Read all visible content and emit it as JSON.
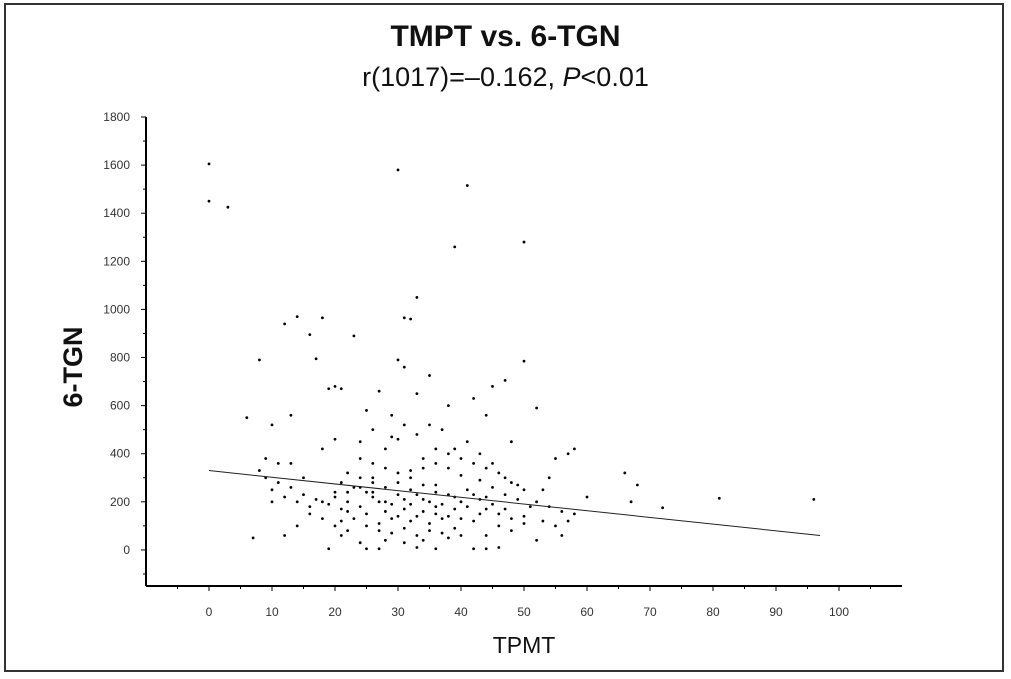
{
  "chart_data": {
    "type": "scatter",
    "title": "TMPT vs. 6-TGN",
    "subtitle_prefix": "r(1017)=–0.162, ",
    "subtitle_p": "P",
    "subtitle_suffix": "<0.01",
    "xlabel": "TPMT",
    "ylabel": "6-TGN",
    "xlim": [
      -10,
      110
    ],
    "ylim": [
      -150,
      1800
    ],
    "xticks": [
      0,
      10,
      20,
      30,
      40,
      50,
      60,
      70,
      80,
      90,
      100
    ],
    "yticks": [
      0,
      200,
      400,
      600,
      800,
      1000,
      1200,
      1400,
      1600,
      1800
    ],
    "grid": false,
    "trend_line": {
      "x": [
        0,
        97
      ],
      "y": [
        330,
        60
      ]
    },
    "points": [
      [
        0,
        1605
      ],
      [
        0,
        1450
      ],
      [
        3,
        1425
      ],
      [
        30,
        1580
      ],
      [
        41,
        1515
      ],
      [
        39,
        1260
      ],
      [
        50,
        1280
      ],
      [
        33,
        1050
      ],
      [
        31,
        965
      ],
      [
        32,
        960
      ],
      [
        12,
        940
      ],
      [
        14,
        970
      ],
      [
        18,
        965
      ],
      [
        16,
        895
      ],
      [
        23,
        890
      ],
      [
        35,
        725
      ],
      [
        8,
        790
      ],
      [
        17,
        795
      ],
      [
        30,
        790
      ],
      [
        31,
        760
      ],
      [
        50,
        785
      ],
      [
        47,
        705
      ],
      [
        52,
        590
      ],
      [
        45,
        680
      ],
      [
        10,
        520
      ],
      [
        6,
        550
      ],
      [
        13,
        560
      ],
      [
        19,
        670
      ],
      [
        20,
        680
      ],
      [
        21,
        670
      ],
      [
        27,
        660
      ],
      [
        33,
        650
      ],
      [
        38,
        600
      ],
      [
        42,
        630
      ],
      [
        25,
        580
      ],
      [
        29,
        560
      ],
      [
        44,
        560
      ],
      [
        48,
        450
      ],
      [
        9,
        380
      ],
      [
        11,
        360
      ],
      [
        7,
        50
      ],
      [
        13,
        360
      ],
      [
        58,
        420
      ],
      [
        57,
        400
      ],
      [
        66,
        320
      ],
      [
        68,
        270
      ],
      [
        72,
        175
      ],
      [
        81,
        215
      ],
      [
        96,
        210
      ],
      [
        54,
        300
      ],
      [
        55,
        380
      ],
      [
        53,
        250
      ],
      [
        58,
        150
      ],
      [
        57,
        120
      ],
      [
        52,
        40
      ],
      [
        56,
        60
      ],
      [
        46,
        10
      ],
      [
        44,
        5
      ],
      [
        42,
        5
      ],
      [
        36,
        5
      ],
      [
        33,
        10
      ],
      [
        27,
        5
      ],
      [
        25,
        5
      ],
      [
        19,
        5
      ],
      [
        18,
        130
      ],
      [
        16,
        150
      ],
      [
        14,
        100
      ],
      [
        12,
        60
      ],
      [
        9,
        300
      ],
      [
        10,
        250
      ],
      [
        15,
        300
      ],
      [
        22,
        320
      ],
      [
        24,
        380
      ],
      [
        26,
        300
      ],
      [
        28,
        420
      ],
      [
        30,
        460
      ],
      [
        32,
        300
      ],
      [
        34,
        380
      ],
      [
        36,
        420
      ],
      [
        38,
        340
      ],
      [
        40,
        310
      ],
      [
        43,
        290
      ],
      [
        45,
        260
      ],
      [
        47,
        230
      ],
      [
        49,
        210
      ],
      [
        51,
        180
      ],
      [
        20,
        240
      ],
      [
        22,
        200
      ],
      [
        24,
        180
      ],
      [
        26,
        220
      ],
      [
        28,
        160
      ],
      [
        30,
        140
      ],
      [
        32,
        120
      ],
      [
        34,
        160
      ],
      [
        36,
        150
      ],
      [
        38,
        140
      ],
      [
        40,
        130
      ],
      [
        42,
        120
      ],
      [
        44,
        170
      ],
      [
        46,
        150
      ],
      [
        48,
        130
      ],
      [
        50,
        110
      ],
      [
        21,
        280
      ],
      [
        23,
        260
      ],
      [
        25,
        240
      ],
      [
        27,
        200
      ],
      [
        29,
        190
      ],
      [
        31,
        210
      ],
      [
        33,
        230
      ],
      [
        35,
        200
      ],
      [
        37,
        190
      ],
      [
        39,
        220
      ],
      [
        41,
        250
      ],
      [
        43,
        210
      ],
      [
        45,
        190
      ],
      [
        47,
        170
      ],
      [
        25,
        100
      ],
      [
        27,
        80
      ],
      [
        29,
        70
      ],
      [
        31,
        90
      ],
      [
        33,
        60
      ],
      [
        35,
        80
      ],
      [
        37,
        70
      ],
      [
        39,
        90
      ],
      [
        20,
        100
      ],
      [
        22,
        80
      ],
      [
        36,
        240
      ],
      [
        34,
        270
      ],
      [
        32,
        250
      ],
      [
        30,
        230
      ],
      [
        28,
        260
      ],
      [
        26,
        280
      ],
      [
        24,
        300
      ],
      [
        21,
        170
      ],
      [
        19,
        190
      ],
      [
        17,
        210
      ],
      [
        15,
        230
      ],
      [
        13,
        260
      ],
      [
        11,
        280
      ],
      [
        41,
        180
      ],
      [
        43,
        150
      ],
      [
        39,
        170
      ],
      [
        37,
        130
      ],
      [
        35,
        110
      ],
      [
        33,
        140
      ],
      [
        31,
        170
      ],
      [
        29,
        130
      ],
      [
        27,
        110
      ],
      [
        25,
        150
      ],
      [
        23,
        130
      ],
      [
        21,
        120
      ],
      [
        46,
        320
      ],
      [
        48,
        280
      ],
      [
        50,
        250
      ],
      [
        44,
        340
      ],
      [
        42,
        360
      ],
      [
        40,
        380
      ],
      [
        38,
        400
      ],
      [
        36,
        360
      ],
      [
        34,
        340
      ],
      [
        32,
        330
      ],
      [
        30,
        320
      ],
      [
        28,
        340
      ],
      [
        26,
        360
      ],
      [
        24,
        260
      ],
      [
        22,
        240
      ],
      [
        20,
        220
      ],
      [
        18,
        200
      ],
      [
        16,
        180
      ],
      [
        14,
        200
      ],
      [
        12,
        220
      ],
      [
        10,
        200
      ],
      [
        8,
        330
      ],
      [
        37,
        500
      ],
      [
        33,
        480
      ],
      [
        29,
        470
      ],
      [
        41,
        450
      ],
      [
        24,
        450
      ],
      [
        35,
        520
      ],
      [
        20,
        460
      ],
      [
        26,
        500
      ],
      [
        18,
        420
      ],
      [
        43,
        400
      ],
      [
        31,
        520
      ],
      [
        39,
        420
      ],
      [
        45,
        360
      ],
      [
        47,
        300
      ],
      [
        49,
        270
      ],
      [
        52,
        200
      ],
      [
        54,
        180
      ],
      [
        56,
        160
      ],
      [
        60,
        220
      ],
      [
        67,
        200
      ],
      [
        53,
        120
      ],
      [
        55,
        100
      ],
      [
        38,
        50
      ],
      [
        34,
        40
      ],
      [
        28,
        40
      ],
      [
        24,
        30
      ],
      [
        21,
        60
      ],
      [
        31,
        30
      ],
      [
        44,
        60
      ],
      [
        40,
        60
      ],
      [
        48,
        80
      ],
      [
        46,
        100
      ],
      [
        50,
        140
      ],
      [
        42,
        230
      ],
      [
        36,
        270
      ],
      [
        30,
        280
      ],
      [
        26,
        240
      ],
      [
        22,
        160
      ],
      [
        28,
        200
      ],
      [
        32,
        190
      ],
      [
        34,
        210
      ],
      [
        36,
        180
      ],
      [
        38,
        230
      ],
      [
        40,
        200
      ],
      [
        44,
        220
      ]
    ]
  }
}
